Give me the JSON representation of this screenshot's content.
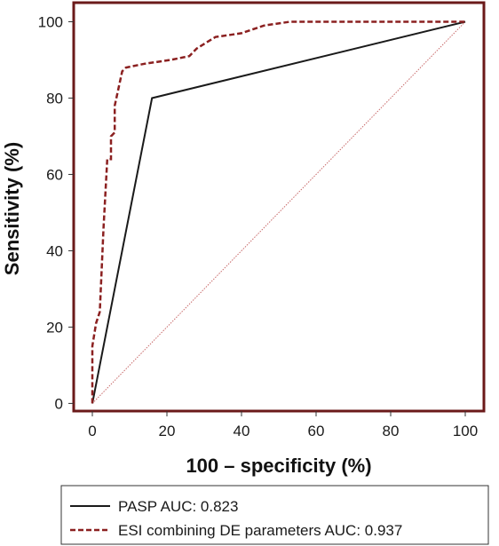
{
  "chart_data": {
    "type": "line",
    "xlabel": "100 – specificity (%)",
    "ylabel": "Sensitivity (%)",
    "xlim": [
      -5,
      105
    ],
    "ylim": [
      -2,
      105
    ],
    "xticks": [
      0,
      20,
      40,
      60,
      80,
      100
    ],
    "yticks": [
      0,
      20,
      40,
      60,
      80,
      100
    ],
    "grid": false,
    "legend_position": "bottom",
    "frame_color": "#6b1a1a",
    "series": [
      {
        "name": "PASP AUC: 0.823",
        "color": "#1a1a1a",
        "style": "solid",
        "x": [
          0,
          16,
          100
        ],
        "y": [
          0,
          80,
          100
        ]
      },
      {
        "name": "ESI combining DE parameters AUC: 0.937",
        "color": "#8b2020",
        "style": "dashed",
        "x": [
          0,
          0,
          1,
          2,
          3,
          4,
          5,
          5,
          6,
          6,
          8,
          9,
          14,
          21,
          26,
          28,
          33,
          40,
          46,
          53,
          60,
          70,
          80,
          90,
          100
        ],
        "y": [
          0,
          15,
          21,
          24,
          46,
          64,
          64,
          70,
          71,
          78,
          87,
          88,
          89,
          90,
          91,
          93,
          96,
          97,
          99,
          100,
          100,
          100,
          100,
          100,
          100
        ]
      },
      {
        "name": "",
        "color": "#c86a6a",
        "style": "dotted",
        "x": [
          0,
          100
        ],
        "y": [
          0,
          100
        ]
      }
    ]
  }
}
